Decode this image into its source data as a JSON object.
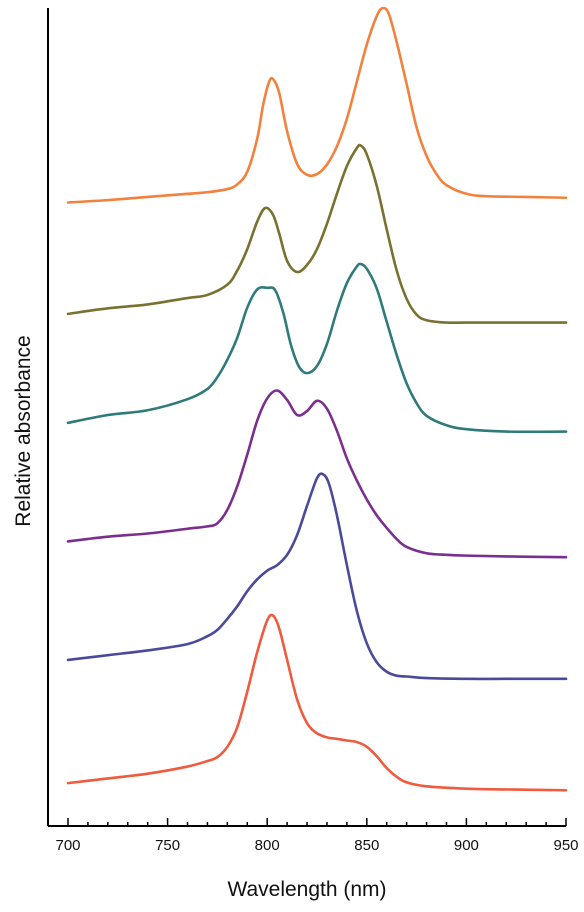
{
  "chart_data": {
    "type": "line",
    "title": "",
    "xlabel": "Wavelength (nm)",
    "ylabel": "Relative absorbance",
    "xlim": [
      700,
      950
    ],
    "ylim": [
      0,
      1
    ],
    "x_ticks": [
      700,
      750,
      800,
      850,
      900,
      950
    ],
    "x_tick_labels": [
      "700",
      "750",
      "800",
      "850",
      "900",
      "950"
    ],
    "x_minor_step": 10,
    "y_ticks": [],
    "grid": false,
    "legend": "none",
    "series": [
      {
        "color": "#f2813e",
        "points": [
          [
            700,
            0.769
          ],
          [
            720,
            0.772
          ],
          [
            740,
            0.776
          ],
          [
            760,
            0.78
          ],
          [
            770,
            0.782
          ],
          [
            780,
            0.786
          ],
          [
            785,
            0.792
          ],
          [
            790,
            0.808
          ],
          [
            795,
            0.85
          ],
          [
            798,
            0.893
          ],
          [
            801,
            0.922
          ],
          [
            803,
            0.925
          ],
          [
            806,
            0.908
          ],
          [
            810,
            0.859
          ],
          [
            815,
            0.818
          ],
          [
            820,
            0.804
          ],
          [
            825,
            0.805
          ],
          [
            830,
            0.817
          ],
          [
            835,
            0.84
          ],
          [
            840,
            0.875
          ],
          [
            845,
            0.922
          ],
          [
            850,
            0.969
          ],
          [
            855,
            1.005
          ],
          [
            858,
            1.015
          ],
          [
            861,
            1.008
          ],
          [
            865,
            0.972
          ],
          [
            870,
            0.919
          ],
          [
            875,
            0.864
          ],
          [
            880,
            0.828
          ],
          [
            885,
            0.805
          ],
          [
            890,
            0.791
          ],
          [
            900,
            0.78
          ],
          [
            910,
            0.777
          ],
          [
            930,
            0.776
          ],
          [
            950,
            0.775
          ]
        ]
      },
      {
        "color": "#7a7030",
        "points": [
          [
            700,
            0.628
          ],
          [
            720,
            0.635
          ],
          [
            740,
            0.64
          ],
          [
            760,
            0.648
          ],
          [
            770,
            0.652
          ],
          [
            780,
            0.665
          ],
          [
            785,
            0.683
          ],
          [
            790,
            0.71
          ],
          [
            795,
            0.745
          ],
          [
            799,
            0.762
          ],
          [
            803,
            0.753
          ],
          [
            806,
            0.73
          ],
          [
            810,
            0.695
          ],
          [
            815,
            0.681
          ],
          [
            820,
            0.69
          ],
          [
            825,
            0.71
          ],
          [
            830,
            0.742
          ],
          [
            835,
            0.78
          ],
          [
            840,
            0.815
          ],
          [
            845,
            0.838
          ],
          [
            847,
            0.841
          ],
          [
            850,
            0.83
          ],
          [
            855,
            0.79
          ],
          [
            860,
            0.735
          ],
          [
            865,
            0.683
          ],
          [
            870,
            0.647
          ],
          [
            875,
            0.627
          ],
          [
            880,
            0.62
          ],
          [
            890,
            0.617
          ],
          [
            900,
            0.617
          ],
          [
            920,
            0.617
          ],
          [
            950,
            0.617
          ]
        ]
      },
      {
        "color": "#2f7a7a",
        "points": [
          [
            700,
            0.49
          ],
          [
            720,
            0.5
          ],
          [
            740,
            0.506
          ],
          [
            760,
            0.52
          ],
          [
            770,
            0.533
          ],
          [
            775,
            0.548
          ],
          [
            780,
            0.57
          ],
          [
            785,
            0.598
          ],
          [
            790,
            0.636
          ],
          [
            795,
            0.659
          ],
          [
            800,
            0.661
          ],
          [
            804,
            0.658
          ],
          [
            808,
            0.63
          ],
          [
            812,
            0.588
          ],
          [
            816,
            0.561
          ],
          [
            820,
            0.553
          ],
          [
            825,
            0.562
          ],
          [
            830,
            0.59
          ],
          [
            835,
            0.632
          ],
          [
            840,
            0.667
          ],
          [
            845,
            0.688
          ],
          [
            847,
            0.691
          ],
          [
            850,
            0.685
          ],
          [
            855,
            0.66
          ],
          [
            860,
            0.618
          ],
          [
            865,
            0.576
          ],
          [
            870,
            0.54
          ],
          [
            875,
            0.515
          ],
          [
            880,
            0.499
          ],
          [
            890,
            0.487
          ],
          [
            900,
            0.482
          ],
          [
            920,
            0.479
          ],
          [
            950,
            0.479
          ]
        ]
      },
      {
        "color": "#7a2f8e",
        "points": [
          [
            700,
            0.34
          ],
          [
            720,
            0.346
          ],
          [
            740,
            0.35
          ],
          [
            760,
            0.356
          ],
          [
            770,
            0.359
          ],
          [
            775,
            0.363
          ],
          [
            780,
            0.38
          ],
          [
            785,
            0.41
          ],
          [
            790,
            0.45
          ],
          [
            795,
            0.493
          ],
          [
            800,
            0.521
          ],
          [
            805,
            0.531
          ],
          [
            810,
            0.519
          ],
          [
            815,
            0.5
          ],
          [
            820,
            0.505
          ],
          [
            825,
            0.518
          ],
          [
            830,
            0.508
          ],
          [
            835,
            0.48
          ],
          [
            840,
            0.445
          ],
          [
            845,
            0.417
          ],
          [
            850,
            0.393
          ],
          [
            855,
            0.373
          ],
          [
            860,
            0.357
          ],
          [
            865,
            0.343
          ],
          [
            870,
            0.333
          ],
          [
            880,
            0.325
          ],
          [
            890,
            0.323
          ],
          [
            900,
            0.322
          ],
          [
            920,
            0.321
          ],
          [
            950,
            0.32
          ]
        ]
      },
      {
        "color": "#4b4a9a",
        "points": [
          [
            700,
            0.19
          ],
          [
            720,
            0.196
          ],
          [
            740,
            0.202
          ],
          [
            760,
            0.21
          ],
          [
            770,
            0.22
          ],
          [
            775,
            0.228
          ],
          [
            780,
            0.242
          ],
          [
            785,
            0.258
          ],
          [
            790,
            0.277
          ],
          [
            795,
            0.292
          ],
          [
            800,
            0.303
          ],
          [
            805,
            0.31
          ],
          [
            810,
            0.323
          ],
          [
            815,
            0.348
          ],
          [
            820,
            0.385
          ],
          [
            825,
            0.42
          ],
          [
            828,
            0.425
          ],
          [
            831,
            0.413
          ],
          [
            835,
            0.373
          ],
          [
            840,
            0.31
          ],
          [
            845,
            0.252
          ],
          [
            850,
            0.211
          ],
          [
            855,
            0.187
          ],
          [
            860,
            0.175
          ],
          [
            865,
            0.17
          ],
          [
            870,
            0.169
          ],
          [
            880,
            0.167
          ],
          [
            900,
            0.166
          ],
          [
            920,
            0.166
          ],
          [
            950,
            0.166
          ]
        ]
      },
      {
        "color": "#f05a3e",
        "points": [
          [
            700,
            0.034
          ],
          [
            720,
            0.04
          ],
          [
            740,
            0.046
          ],
          [
            760,
            0.055
          ],
          [
            770,
            0.062
          ],
          [
            775,
            0.067
          ],
          [
            780,
            0.08
          ],
          [
            785,
            0.105
          ],
          [
            790,
            0.15
          ],
          [
            795,
            0.2
          ],
          [
            800,
            0.24
          ],
          [
            803,
            0.246
          ],
          [
            806,
            0.23
          ],
          [
            810,
            0.19
          ],
          [
            815,
            0.14
          ],
          [
            820,
            0.11
          ],
          [
            825,
            0.097
          ],
          [
            830,
            0.092
          ],
          [
            835,
            0.09
          ],
          [
            840,
            0.088
          ],
          [
            845,
            0.086
          ],
          [
            850,
            0.08
          ],
          [
            855,
            0.068
          ],
          [
            860,
            0.053
          ],
          [
            865,
            0.042
          ],
          [
            870,
            0.035
          ],
          [
            880,
            0.03
          ],
          [
            900,
            0.027
          ],
          [
            920,
            0.026
          ],
          [
            950,
            0.025
          ]
        ]
      }
    ]
  }
}
